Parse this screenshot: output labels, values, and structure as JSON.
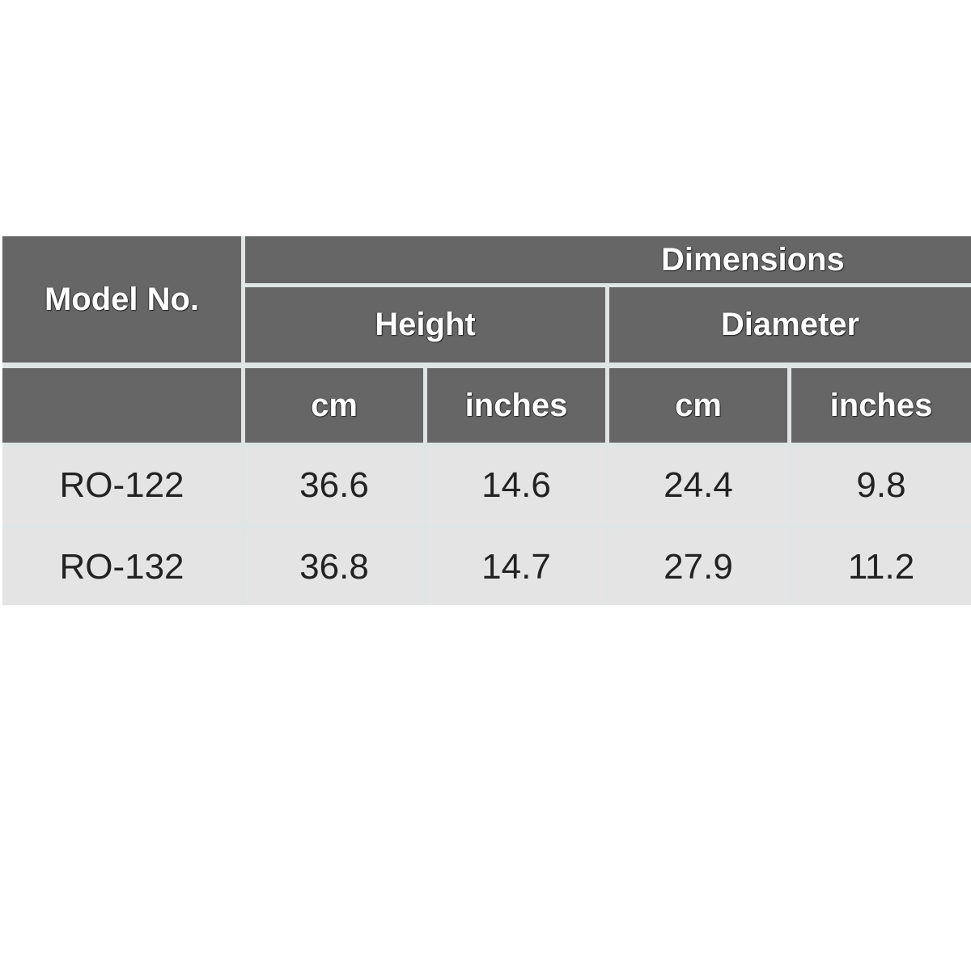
{
  "table": {
    "header": {
      "model": "Model No.",
      "group": "Dimensions",
      "subgroups": [
        "Height",
        "Diameter"
      ],
      "units": [
        "cm",
        "inches",
        "cm",
        "inches"
      ]
    },
    "rows": [
      [
        "RO-122",
        36.6,
        14.6,
        24.4,
        9.8
      ],
      [
        "RO-132",
        36.8,
        14.7,
        27.9,
        11.2
      ]
    ]
  }
}
